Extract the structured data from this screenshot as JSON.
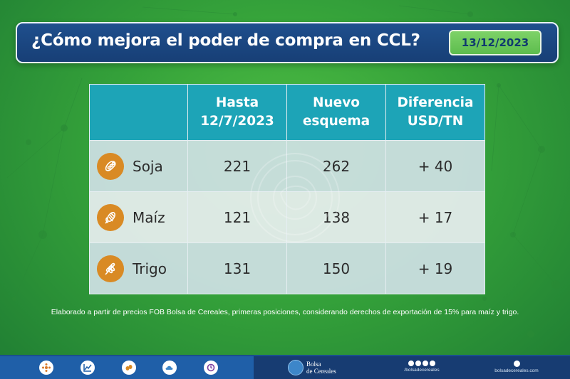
{
  "header": {
    "title": "¿Cómo mejora el poder de compra en CCL?",
    "date": "13/12/2023"
  },
  "table": {
    "columns": [
      {
        "line1": "",
        "line2": ""
      },
      {
        "line1": "Hasta",
        "line2": "12/7/2023"
      },
      {
        "line1": "Nuevo",
        "line2": "esquema"
      },
      {
        "line1": "Diferencia",
        "line2": "USD/TN"
      }
    ],
    "rows": [
      {
        "crop": "Soja",
        "icon": "soy-icon",
        "before": "221",
        "after": "262",
        "diff": "+ 40"
      },
      {
        "crop": "Maíz",
        "icon": "corn-icon",
        "before": "121",
        "after": "138",
        "diff": "+ 17"
      },
      {
        "crop": "Trigo",
        "icon": "wheat-icon",
        "before": "131",
        "after": "150",
        "diff": "+ 19"
      }
    ]
  },
  "footnote": "Elaborado a partir de precios FOB Bolsa de Cereales, primeras posiciones, considerando derechos de exportación de 15% para maíz y trigo.",
  "footer": {
    "brand_line1": "Bolsa",
    "brand_line2": "de Cereales",
    "social_handle": "/bolsadecereales",
    "website": "bolsadecereales.com"
  },
  "colors": {
    "header_bg": "#1f4f8d",
    "date_bg": "#6ec85a",
    "table_header": "#1da4b7",
    "icon_orange": "#d98a24",
    "footer_left": "#1f5fa8",
    "footer_right": "#173c72"
  }
}
